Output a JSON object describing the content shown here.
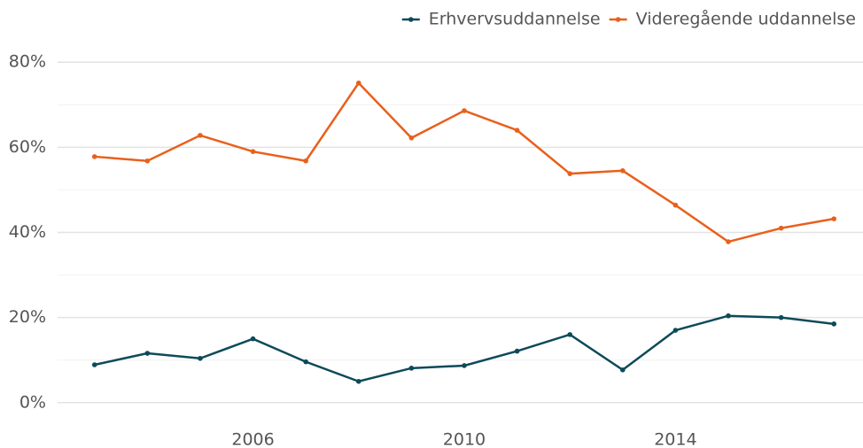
{
  "chart_data": {
    "type": "line",
    "x": [
      2003,
      2004,
      2005,
      2006,
      2007,
      2008,
      2009,
      2010,
      2011,
      2012,
      2013,
      2014,
      2015,
      2016,
      2017
    ],
    "series": [
      {
        "name": "Erhvervsuddannelse",
        "color": "#0d4a5a",
        "values": [
          8.9,
          11.6,
          10.4,
          15.0,
          9.6,
          5.0,
          8.1,
          8.7,
          12.1,
          16.0,
          7.7,
          17.0,
          20.4,
          20.0,
          18.5
        ]
      },
      {
        "name": "Videregående uddannelse",
        "color": "#e8601c",
        "values": [
          57.8,
          56.8,
          62.8,
          59.0,
          56.8,
          75.1,
          62.2,
          68.6,
          64.0,
          53.8,
          54.5,
          46.4,
          37.8,
          41.0,
          43.2
        ]
      }
    ],
    "xlim": [
      2002.3,
      2017.55
    ],
    "xticks": [
      2006,
      2010,
      2014
    ],
    "ylim": [
      -4,
      84
    ],
    "yticks": [
      {
        "value": 0,
        "label": "0%"
      },
      {
        "value": 20,
        "label": "20%"
      },
      {
        "value": 40,
        "label": "40%"
      },
      {
        "value": 60,
        "label": "60%"
      },
      {
        "value": 80,
        "label": "80%"
      }
    ],
    "y_minor_ticks": [
      10,
      30,
      50,
      70
    ],
    "grid": true,
    "legend": "top-right"
  }
}
